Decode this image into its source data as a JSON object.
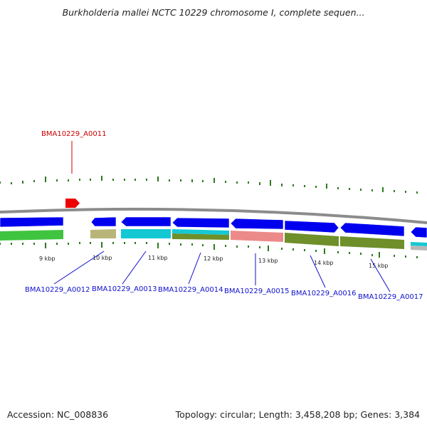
{
  "title": "Burkholderia mallei NCTC 10229 chromosome I, complete sequen...",
  "footer": {
    "accession": "Accession: NC_008836",
    "summary": "Topology: circular; Length: 3,458,208 bp; Genes: 3,384"
  },
  "colors": {
    "backbone": "#888888",
    "gene_blue": "#0000ee",
    "gene_red": "#ee0000",
    "label_blue": "#1010cc",
    "label_red": "#cc0000",
    "tick_green": "#2d7a1e"
  },
  "scale_ticks": [
    "9 kbp",
    "10 kbp",
    "11 kbp",
    "12 kbp",
    "13 kbp",
    "14 kbp",
    "15 kbp"
  ],
  "gene_labels": [
    {
      "text": "BMA10229_A0011",
      "color": "red"
    },
    {
      "text": "BMA10229_A0012",
      "color": "blue"
    },
    {
      "text": "BMA10229_A0013",
      "color": "blue"
    },
    {
      "text": "BMA10229_A0014",
      "color": "blue"
    },
    {
      "text": "BMA10229_A0015",
      "color": "blue"
    },
    {
      "text": "BMA10229_A0016",
      "color": "blue"
    },
    {
      "text": "BMA10229_A0017",
      "color": "blue"
    }
  ]
}
